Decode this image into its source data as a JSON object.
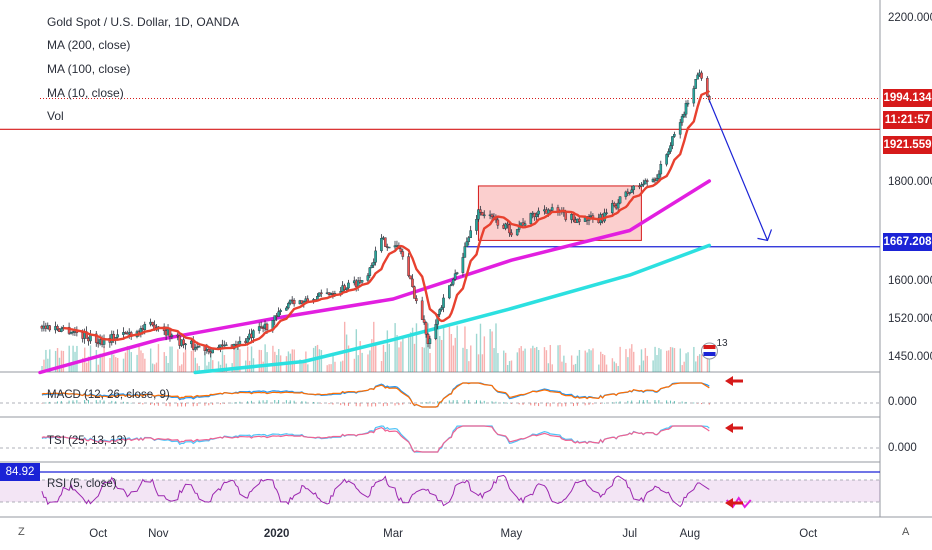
{
  "legend": {
    "title": "Gold Spot / U.S. Dollar, 1D, OANDA",
    "ma200": "MA (200, close)",
    "ma100": "MA (100, close)",
    "ma10": "MA (10, close)",
    "vol": "Vol"
  },
  "badges": {
    "last_price": "1994.134",
    "countdown": "11:21:57",
    "resistance": "1921.559",
    "support": "1667.208",
    "rsi_value": "84.92"
  },
  "corner": {
    "left": "Z",
    "right": "A"
  },
  "volume_label": "13",
  "colors": {
    "up": "#26a69a",
    "down": "#ef5350",
    "ma10": "#e8412f",
    "ma100": "#e21fe0",
    "ma200": "#2ce0e0",
    "level_red": "#d61a1a",
    "level_blue": "#1b23d6",
    "arrow": "#1b23d6",
    "rsi": "#9c27b0"
  },
  "chart_data": {
    "type": "candlestick",
    "title": "Gold Spot / U.S. Dollar, 1D, OANDA",
    "price_axis": {
      "ticks": [
        2200,
        2000,
        1800,
        1600,
        1520,
        1450
      ],
      "labels": [
        "2200.000",
        "",
        "1800.000",
        "1600.000",
        "1520.000",
        "1450.000"
      ]
    },
    "time_axis": {
      "labels": [
        "Oct",
        "Nov",
        "2020",
        "Mar",
        "May",
        "Jul",
        "Aug",
        "Oct"
      ]
    },
    "price_path": [
      [
        "2019-09-01",
        1505
      ],
      [
        "2019-09-15",
        1500
      ],
      [
        "2019-10-01",
        1478
      ],
      [
        "2019-10-15",
        1490
      ],
      [
        "2019-11-01",
        1508
      ],
      [
        "2019-11-15",
        1470
      ],
      [
        "2019-12-01",
        1463
      ],
      [
        "2019-12-15",
        1476
      ],
      [
        "2020-01-01",
        1520
      ],
      [
        "2020-01-08",
        1560
      ],
      [
        "2020-01-15",
        1552
      ],
      [
        "2020-02-01",
        1580
      ],
      [
        "2020-02-15",
        1600
      ],
      [
        "2020-02-24",
        1680
      ],
      [
        "2020-03-05",
        1660
      ],
      [
        "2020-03-19",
        1480
      ],
      [
        "2020-04-01",
        1600
      ],
      [
        "2020-04-14",
        1740
      ],
      [
        "2020-05-01",
        1700
      ],
      [
        "2020-05-18",
        1745
      ],
      [
        "2020-06-01",
        1725
      ],
      [
        "2020-06-15",
        1720
      ],
      [
        "2020-07-01",
        1780
      ],
      [
        "2020-07-15",
        1810
      ],
      [
        "2020-07-28",
        1950
      ],
      [
        "2020-08-06",
        2065
      ],
      [
        "2020-08-11",
        1994
      ]
    ],
    "moving_averages": [
      {
        "name": "MA (200, close)",
        "color": "#2ce0e0",
        "points": [
          [
            "2019-11-20",
            1420
          ],
          [
            "2020-01-15",
            1440
          ],
          [
            "2020-03-01",
            1480
          ],
          [
            "2020-05-01",
            1540
          ],
          [
            "2020-07-01",
            1610
          ],
          [
            "2020-08-11",
            1670
          ]
        ]
      },
      {
        "name": "MA (100, close)",
        "color": "#e21fe0",
        "points": [
          [
            "2019-09-01",
            1420
          ],
          [
            "2019-11-01",
            1480
          ],
          [
            "2020-01-01",
            1520
          ],
          [
            "2020-03-01",
            1560
          ],
          [
            "2020-05-01",
            1640
          ],
          [
            "2020-07-01",
            1700
          ],
          [
            "2020-08-11",
            1800
          ]
        ]
      }
    ],
    "levels": [
      {
        "value": 1994.134,
        "style": "dotted",
        "color": "#d61a1a"
      },
      {
        "value": 1921.559,
        "style": "solid",
        "color": "#d61a1a"
      },
      {
        "value": 1667.208,
        "style": "solid",
        "color": "#1b23d6"
      }
    ],
    "consolidation_box": {
      "from": "2020-04-14",
      "to": "2020-07-07",
      "low": 1680,
      "high": 1790
    },
    "projection_arrow": {
      "from": [
        "2020-08-11",
        1990
      ],
      "to": [
        "2020-09-10",
        1680
      ]
    },
    "indicators": [
      {
        "name": "MACD (12, 26, close, 9)",
        "axis_label": "0.000"
      },
      {
        "name": "TSI (25, 13, 13)",
        "axis_label": "0.000"
      },
      {
        "name": "RSI (5, close)",
        "current": 84.92
      }
    ]
  }
}
